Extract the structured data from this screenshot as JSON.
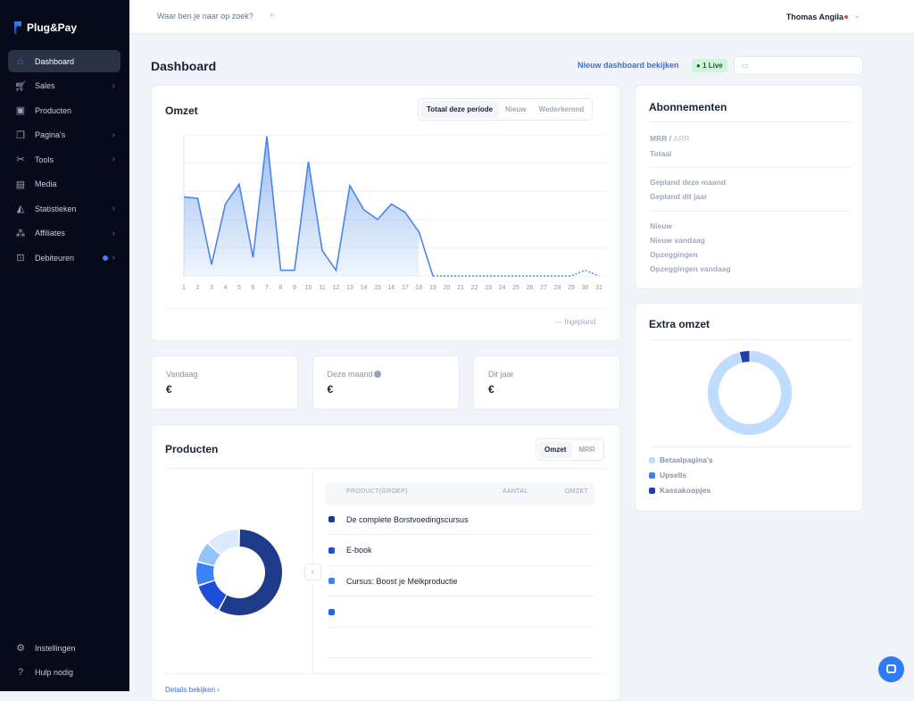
{
  "app": {
    "name": "Plug&Pay"
  },
  "sidebar": {
    "items": [
      {
        "label": "Dashboard",
        "icon": "home-icon",
        "active": true
      },
      {
        "label": "Sales",
        "icon": "cart-icon",
        "chevron": true
      },
      {
        "label": "Producten",
        "icon": "box-icon"
      },
      {
        "label": "Pagina's",
        "icon": "pages-icon",
        "chevron": true
      },
      {
        "label": "Tools",
        "icon": "tools-icon",
        "chevron": true
      },
      {
        "label": "Media",
        "icon": "media-icon"
      },
      {
        "label": "Statistieken",
        "icon": "stats-icon",
        "chevron": true
      },
      {
        "label": "Affiliates",
        "icon": "affiliates-icon",
        "chevron": true
      },
      {
        "label": "Debiteuren",
        "icon": "inbox-icon",
        "chevron": true,
        "badge_dot": true
      }
    ],
    "bottom": [
      {
        "label": "Instellingen",
        "icon": "gear-icon"
      },
      {
        "label": "Hulp nodig",
        "icon": "help-icon"
      }
    ]
  },
  "topbar": {
    "search_placeholder": "Waar ben je naar op zoek?",
    "user": "Thomas Angila"
  },
  "header": {
    "title": "Dashboard",
    "new_dashboard_link": "Nieuw dashboard bekijken",
    "live_badge": "1 Live"
  },
  "omzet": {
    "title": "Omzet",
    "tabs": [
      "Totaal deze periode",
      "Nieuw",
      "Wederkerend"
    ],
    "active_tab": "Totaal deze periode",
    "legend_planned": "--- Ingepland"
  },
  "chart_data": {
    "type": "area",
    "x": [
      1,
      2,
      3,
      4,
      5,
      6,
      7,
      8,
      9,
      10,
      11,
      12,
      13,
      14,
      15,
      16,
      17,
      18,
      19,
      20,
      21,
      22,
      23,
      24,
      25,
      26,
      27,
      28,
      29,
      30,
      31
    ],
    "x_tick_labels": [
      "1",
      "2",
      "3",
      "4",
      "5",
      "6",
      "7",
      "8",
      "9",
      "10",
      "11",
      "12",
      "13",
      "14",
      "15",
      "16",
      "17",
      "18",
      "19",
      "20",
      "21",
      "22",
      "23",
      "24",
      "25",
      "26",
      "27",
      "28",
      "29",
      "30",
      "31"
    ],
    "series": [
      {
        "name": "Omzet",
        "values": [
          56,
          55,
          8,
          51,
          65,
          13,
          99,
          4,
          4,
          81,
          18,
          4,
          64,
          47,
          40,
          51,
          45,
          31,
          0,
          null,
          null,
          null,
          null,
          null,
          null,
          null,
          null,
          null,
          null,
          null,
          null
        ]
      },
      {
        "name": "Ingepland",
        "values": [
          null,
          null,
          null,
          null,
          null,
          null,
          null,
          null,
          null,
          null,
          null,
          null,
          null,
          null,
          null,
          null,
          null,
          null,
          0,
          0,
          0,
          0,
          0,
          0,
          0,
          0,
          0,
          0,
          0,
          4,
          0
        ]
      }
    ],
    "ylim": [
      0,
      100
    ],
    "grid": true,
    "legend": "bottom-right",
    "color": "#4a86e8"
  },
  "stats": [
    {
      "label": "Vandaag",
      "value": "€"
    },
    {
      "label": "Deze maand",
      "value": "€",
      "info": true
    },
    {
      "label": "Dit jaar",
      "value": "€"
    }
  ],
  "producten": {
    "title": "Producten",
    "tabs": [
      "Omzet",
      "MRR"
    ],
    "active_tab": "Omzet",
    "columns": [
      "PRODUCT(GROEP)",
      "AANTAL",
      "OMZET"
    ],
    "rows": [
      {
        "name": "De complete Borstvoedingscursus",
        "color": "#1e3a8a"
      },
      {
        "name": "E-book",
        "color": "#1d4ed8"
      },
      {
        "name": "Cursus: Boost je Melkproductie",
        "color": "#3b82f6"
      },
      {
        "name": "",
        "color": "#2563eb"
      },
      {
        "name": "",
        "color": ""
      }
    ],
    "donut": [
      {
        "value": 58,
        "color": "#1e3a8a"
      },
      {
        "value": 12,
        "color": "#1d4ed8"
      },
      {
        "value": 9,
        "color": "#3b82f6"
      },
      {
        "value": 8,
        "color": "#93c5fd"
      },
      {
        "value": 13,
        "color": "#dbeafe"
      }
    ],
    "details_link": "Details bekijken ›"
  },
  "abonnementen": {
    "title": "Abonnementen",
    "mrr": "MRR",
    "arr": "ARR",
    "rows1": [
      "Totaal"
    ],
    "rows2": [
      "Gepland deze maand",
      "Gepland dit jaar"
    ],
    "rows3": [
      "Nieuw",
      "Nieuw vandaag",
      "Opzeggingen",
      "Opzeggingen vandaag"
    ]
  },
  "extra_omzet": {
    "title": "Extra omzet",
    "legend": [
      {
        "label": "Betaalpagina's",
        "color": "#bfdbfe",
        "value": 96
      },
      {
        "label": "Upsells",
        "color": "#3b82f6",
        "value": 0
      },
      {
        "label": "Kassakoopjes",
        "color": "#1e40af",
        "value": 4
      }
    ]
  }
}
